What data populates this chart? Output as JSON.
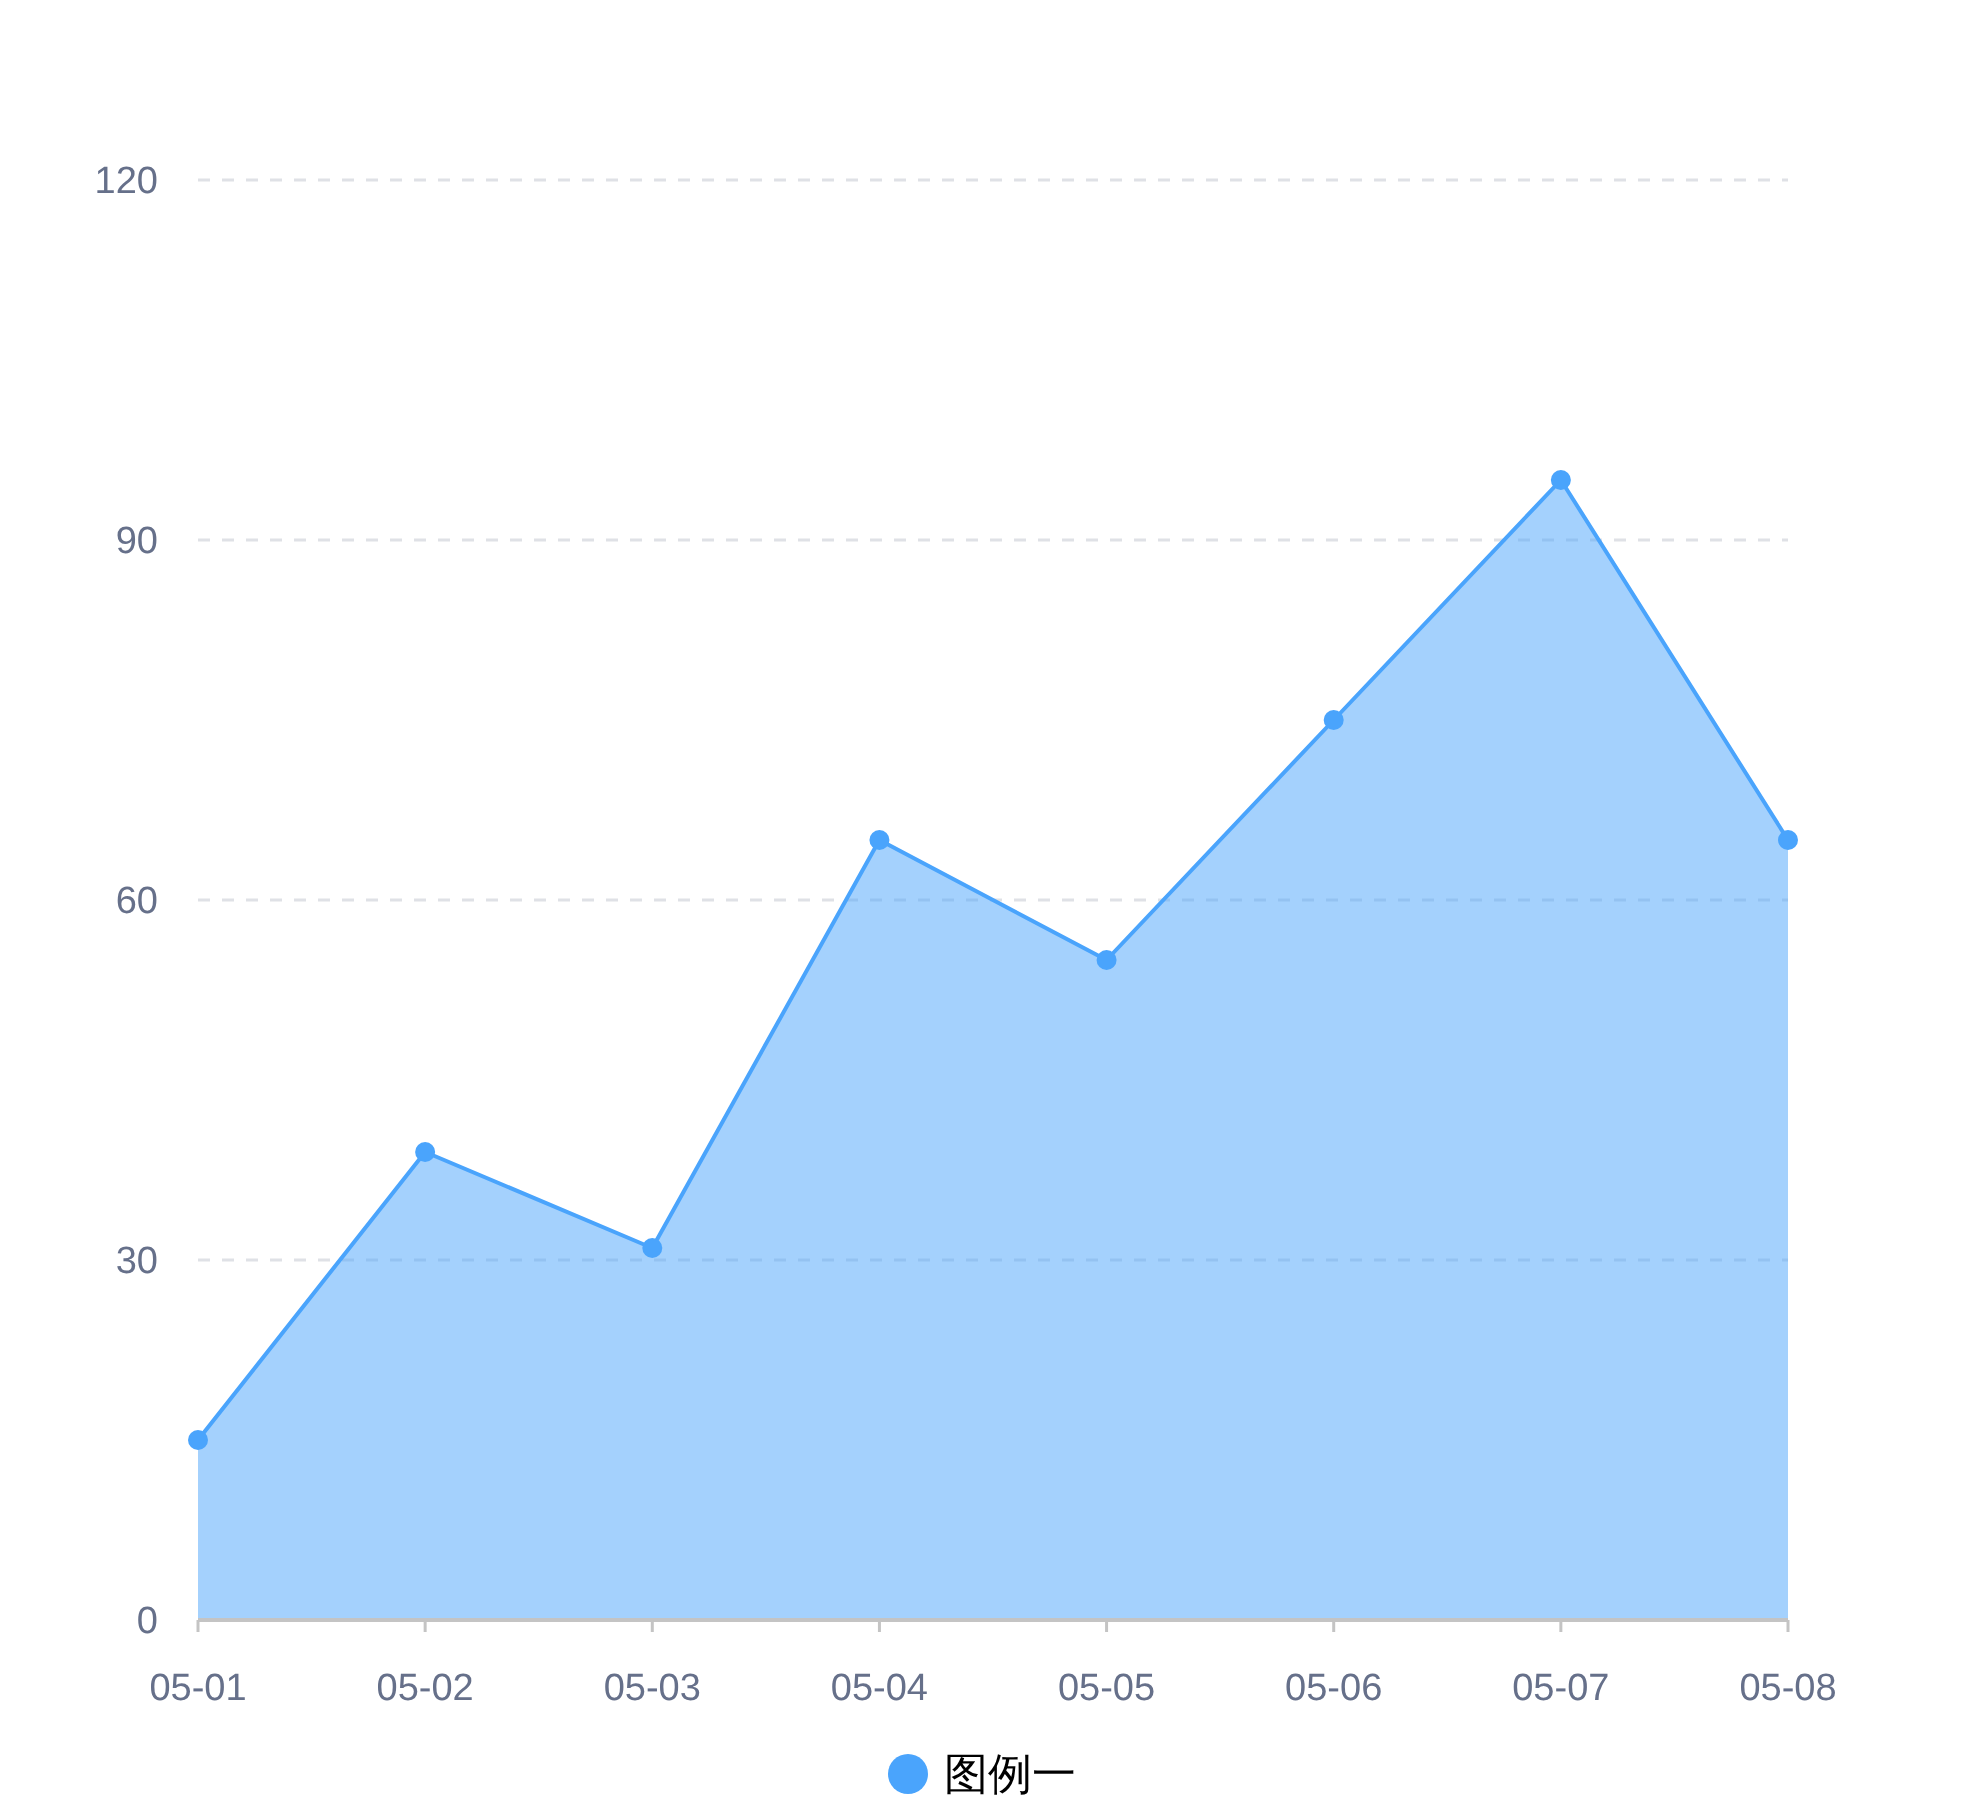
{
  "chart_data": {
    "type": "area",
    "categories": [
      "05-01",
      "05-02",
      "05-03",
      "05-04",
      "05-05",
      "05-06",
      "05-07",
      "05-08"
    ],
    "series": [
      {
        "name": "图例一",
        "color": "#4aa4fc",
        "values": [
          15,
          39,
          31,
          65,
          55,
          75,
          95,
          65
        ]
      }
    ],
    "ylim": [
      0,
      120
    ],
    "yticks": [
      0,
      30,
      60,
      90,
      120
    ],
    "grid": "y",
    "legend": "bottom",
    "marker": "circle"
  }
}
